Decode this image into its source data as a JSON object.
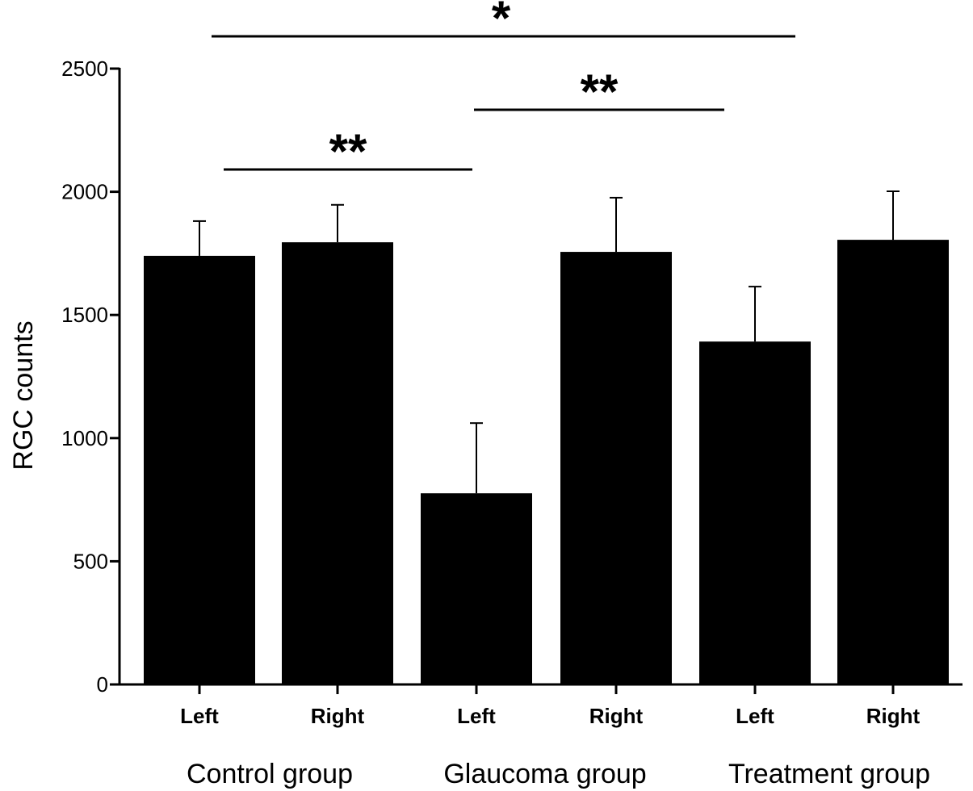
{
  "chart_data": {
    "type": "bar",
    "title": "",
    "xlabel": "",
    "ylabel": "RGC counts",
    "ylim": [
      0,
      2500
    ],
    "yticks": [
      0,
      500,
      1000,
      1500,
      2000,
      2500
    ],
    "grid": false,
    "categories": [
      "Left",
      "Right",
      "Left",
      "Right",
      "Left",
      "Right"
    ],
    "groups": [
      "Control group",
      "Glaucoma group",
      "Treatment group"
    ],
    "values": [
      1740,
      1795,
      776,
      1756,
      1392,
      1805
    ],
    "errors": [
      141,
      152,
      285,
      220,
      223,
      197
    ],
    "color": "#000000",
    "significance": [
      {
        "from": 0,
        "to": 2,
        "label": "**"
      },
      {
        "from": 2,
        "to": 4,
        "label": "**"
      },
      {
        "from": 0,
        "to": 4,
        "label": "*"
      }
    ]
  }
}
